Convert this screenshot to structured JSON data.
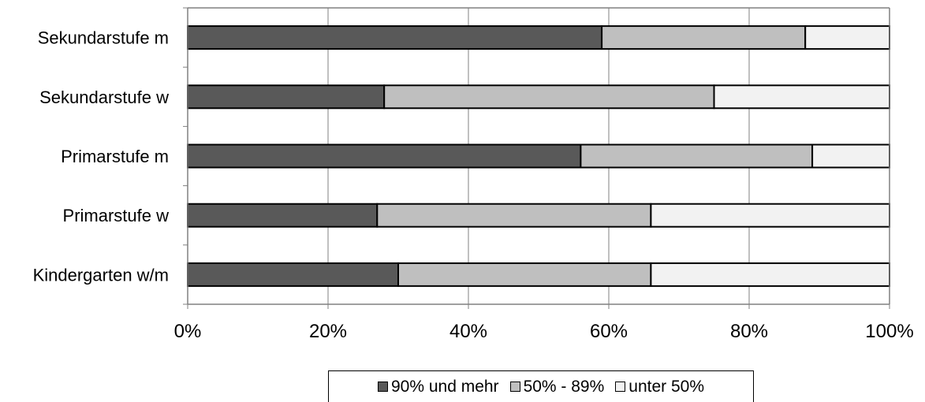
{
  "chart_data": {
    "type": "bar",
    "orientation": "horizontal",
    "stacked": true,
    "normalized": true,
    "categories": [
      "Sekundarstufe m",
      "Sekundarstufe w",
      "Primarstufe m",
      "Primarstufe w",
      "Kindergarten w/m"
    ],
    "series": [
      {
        "name": "90% und mehr",
        "color": "#595959",
        "values": [
          59,
          28,
          56,
          27,
          30
        ]
      },
      {
        "name": "50% - 89%",
        "color": "#bfbfbf",
        "values": [
          29,
          47,
          33,
          39,
          36
        ]
      },
      {
        "name": "unter 50%",
        "color": "#f2f2f2",
        "values": [
          12,
          25,
          11,
          34,
          34
        ]
      }
    ],
    "x_ticks": [
      "0%",
      "20%",
      "40%",
      "60%",
      "80%",
      "100%"
    ],
    "xlim": [
      0,
      100
    ],
    "grid": "vertical",
    "legend_position": "bottom"
  }
}
